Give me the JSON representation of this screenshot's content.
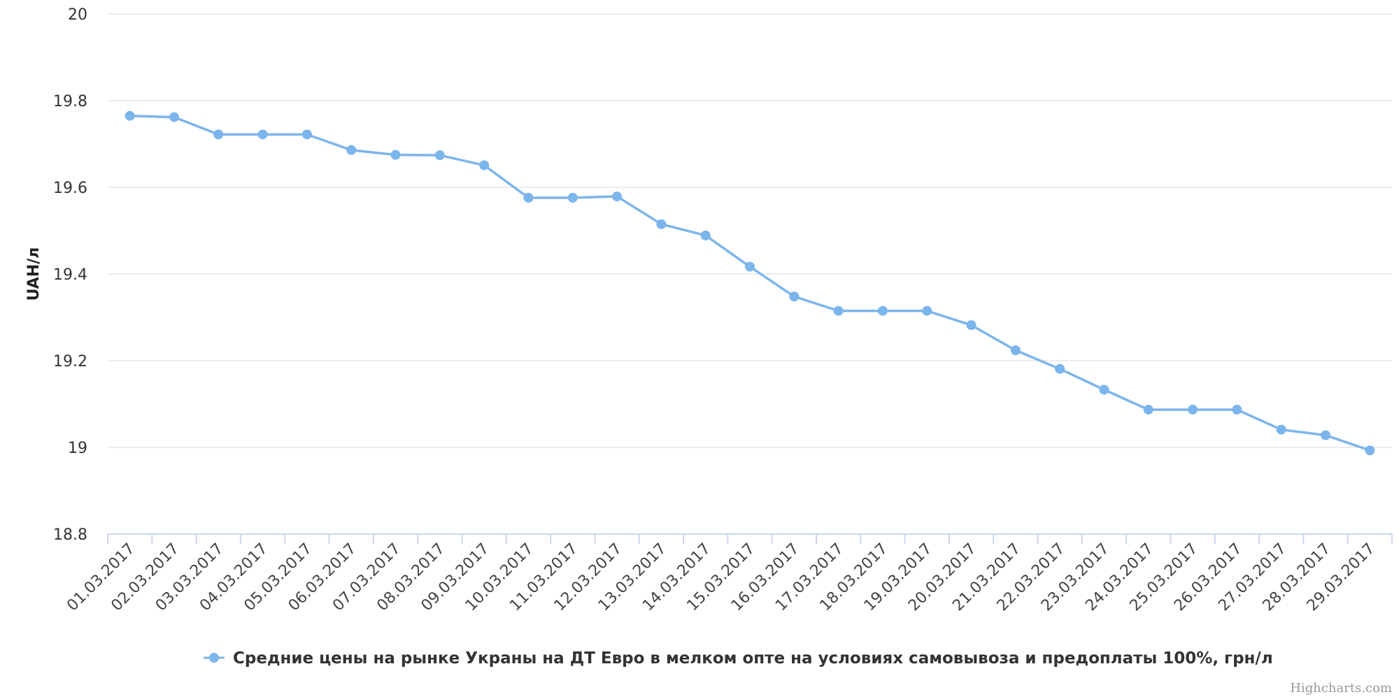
{
  "chart_data": {
    "type": "line",
    "ylabel": "UAH/л",
    "ylim": [
      18.8,
      20
    ],
    "yticks": [
      "18.8",
      "19",
      "19.2",
      "19.4",
      "19.6",
      "19.8",
      "20"
    ],
    "grid": true,
    "legend_position": "bottom-center",
    "categories": [
      "01.03.2017",
      "02.03.2017",
      "03.03.2017",
      "04.03.2017",
      "05.03.2017",
      "06.03.2017",
      "07.03.2017",
      "08.03.2017",
      "09.03.2017",
      "10.03.2017",
      "11.03.2017",
      "12.03.2017",
      "13.03.2017",
      "14.03.2017",
      "15.03.2017",
      "16.03.2017",
      "17.03.2017",
      "18.03.2017",
      "19.03.2017",
      "20.03.2017",
      "21.03.2017",
      "22.03.2017",
      "23.03.2017",
      "24.03.2017",
      "25.03.2017",
      "26.03.2017",
      "27.03.2017",
      "28.03.2017",
      "29.03.2017"
    ],
    "series": [
      {
        "name": "Средние цены на рынке Украны на ДТ Евро в мелком опте на условиях самовывоза и предоплаты 100%, грн/л",
        "color": "#7cb5ec",
        "values": [
          19.765,
          19.762,
          19.722,
          19.722,
          19.722,
          19.686,
          19.675,
          19.674,
          19.651,
          19.576,
          19.576,
          19.579,
          19.515,
          19.489,
          19.417,
          19.348,
          19.315,
          19.315,
          19.315,
          19.282,
          19.224,
          19.181,
          19.133,
          19.087,
          19.087,
          19.087,
          19.041,
          19.028,
          18.993
        ]
      }
    ]
  },
  "credits": "Highcharts.com"
}
